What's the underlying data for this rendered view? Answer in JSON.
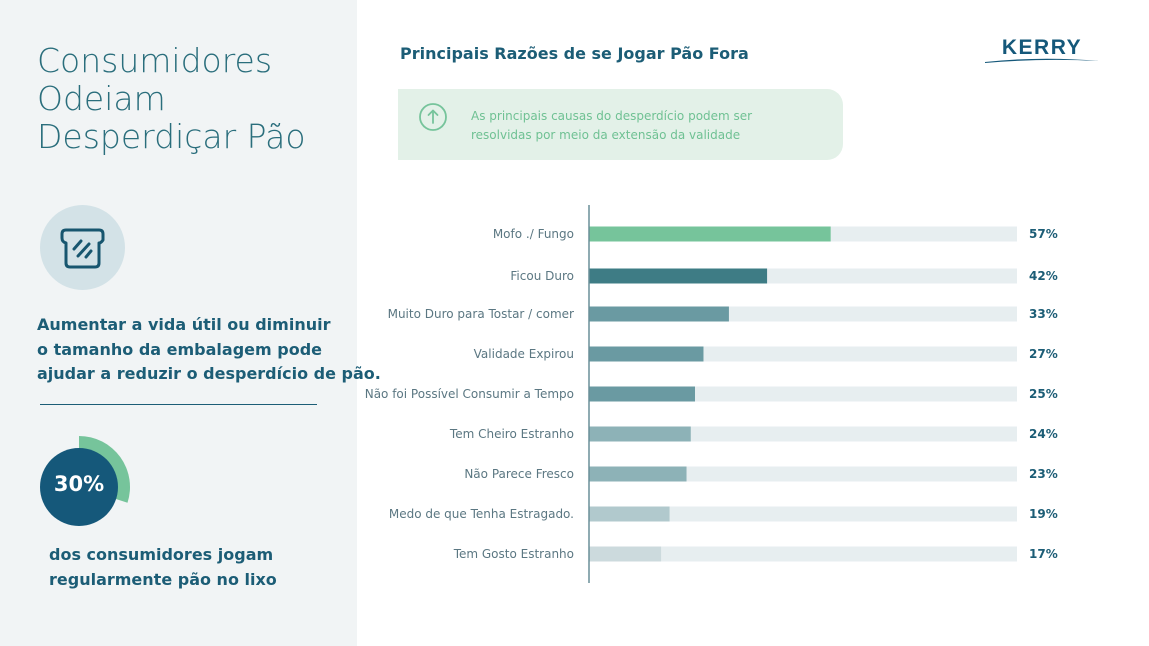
{
  "sidebar": {
    "title_lines": [
      "Consumidores",
      "Odeiam",
      "Desperdiçar Pão"
    ],
    "description_lines": [
      "Aumentar a vida útil ou diminuir",
      "o tamanho da embalagem pode",
      "ajudar a reduzir o desperdício de pão."
    ],
    "stat": {
      "value": "30%",
      "fraction": 0.3,
      "lines": [
        "dos consumidores jogam",
        "regularmente pão no lixo"
      ]
    }
  },
  "callout": {
    "lines": [
      "As principais causas do desperdício podem ser",
      "resolvidas por meio da extensão da validade"
    ]
  },
  "logo": {
    "text": "KERRY"
  },
  "colors": {
    "accent_green": "#76c49b",
    "navy": "#1c5d76",
    "track": "#e7eef0",
    "bar_colors": [
      "#76c49b",
      "#3e7c85",
      "#6a9aa2",
      "#6a9aa2",
      "#6a9aa2",
      "#8db2b7",
      "#8db2b7",
      "#b1c9cd",
      "#ccdadd"
    ]
  },
  "chart_data": {
    "type": "bar",
    "orientation": "horizontal",
    "title": "Principais Razões de se Jogar Pão Fora",
    "categories": [
      "Mofo ./ Fungo",
      "Ficou Duro",
      "Muito Duro para Tostar / comer",
      "Validade Expirou",
      "Não foi Possível Consumir a Tempo",
      "Tem Cheiro Estranho",
      "Não Parece Fresco",
      "Medo de que Tenha Estragado.",
      "Tem Gosto Estranho"
    ],
    "values": [
      57,
      42,
      33,
      27,
      25,
      24,
      23,
      19,
      17
    ],
    "value_labels": [
      "57%",
      "42%",
      "33%",
      "27%",
      "25%",
      "24%",
      "23%",
      "19%",
      "17%"
    ],
    "xlim": [
      0,
      100
    ],
    "unit": "%",
    "grid": false
  }
}
